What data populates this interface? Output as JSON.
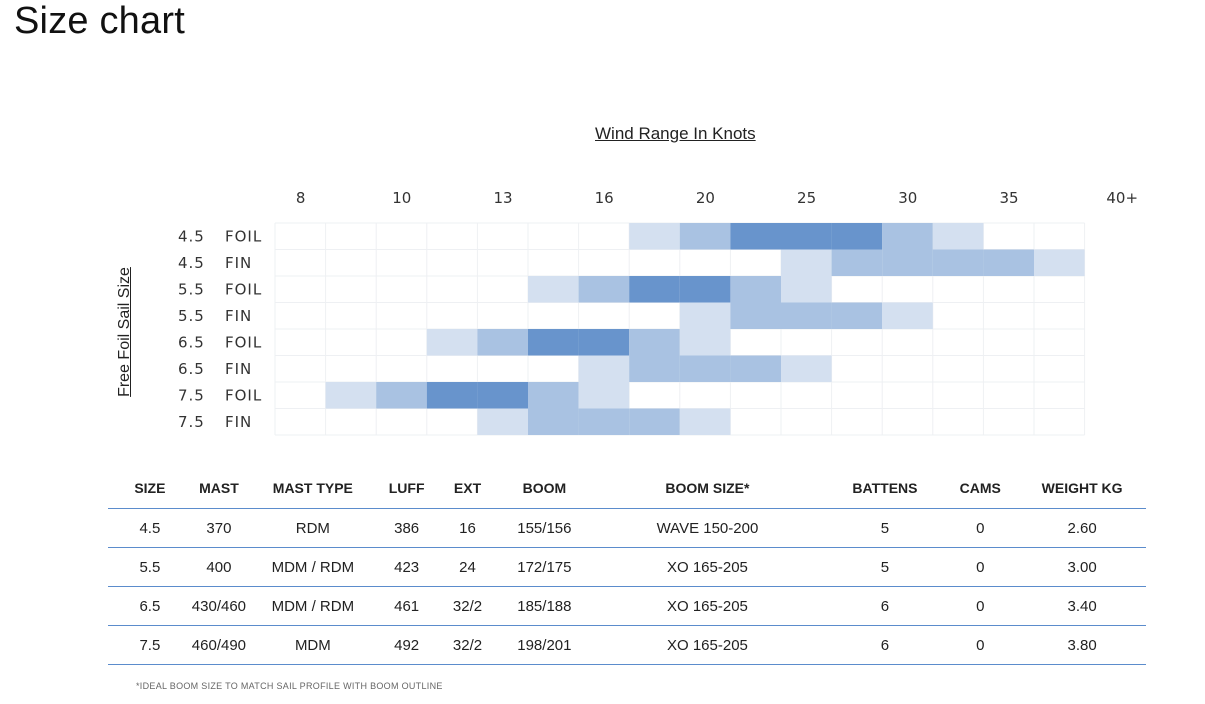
{
  "page": {
    "title": "Size chart"
  },
  "chart_data": {
    "type": "heatmap",
    "title": "Wind Range In Knots",
    "ylabel": "Free Foil Sail Size",
    "x_ticks": [
      "8",
      "10",
      "13",
      "16",
      "20",
      "25",
      "30",
      "35",
      "40+"
    ],
    "rows": [
      {
        "size": "4.5",
        "type": "FOIL",
        "cells": [
          0,
          0,
          0,
          0,
          0,
          0,
          0,
          1,
          2,
          3,
          3,
          3,
          2,
          1,
          0,
          0
        ]
      },
      {
        "size": "4.5",
        "type": "FIN",
        "cells": [
          0,
          0,
          0,
          0,
          0,
          0,
          0,
          0,
          0,
          0,
          1,
          2,
          2,
          2,
          2,
          1
        ]
      },
      {
        "size": "5.5",
        "type": "FOIL",
        "cells": [
          0,
          0,
          0,
          0,
          0,
          1,
          2,
          3,
          3,
          2,
          1,
          0,
          0,
          0,
          0,
          0
        ]
      },
      {
        "size": "5.5",
        "type": "FIN",
        "cells": [
          0,
          0,
          0,
          0,
          0,
          0,
          0,
          0,
          1,
          2,
          2,
          2,
          1,
          0,
          0,
          0
        ]
      },
      {
        "size": "6.5",
        "type": "FOIL",
        "cells": [
          0,
          0,
          0,
          1,
          2,
          3,
          3,
          2,
          1,
          0,
          0,
          0,
          0,
          0,
          0,
          0
        ]
      },
      {
        "size": "6.5",
        "type": "FIN",
        "cells": [
          0,
          0,
          0,
          0,
          0,
          0,
          1,
          2,
          2,
          2,
          1,
          0,
          0,
          0,
          0,
          0
        ]
      },
      {
        "size": "7.5",
        "type": "FOIL",
        "cells": [
          0,
          1,
          2,
          3,
          3,
          2,
          1,
          0,
          0,
          0,
          0,
          0,
          0,
          0,
          0,
          0
        ]
      },
      {
        "size": "7.5",
        "type": "FIN",
        "cells": [
          0,
          0,
          0,
          0,
          1,
          2,
          2,
          2,
          1,
          0,
          0,
          0,
          0,
          0,
          0,
          0
        ]
      }
    ],
    "colors": [
      "#ffffff",
      "#d4e0f0",
      "#a9c2e2",
      "#6894cc"
    ]
  },
  "table": {
    "headers": [
      "SIZE",
      "MAST",
      "MAST TYPE",
      "LUFF",
      "EXT",
      "BOOM",
      "BOOM SIZE*",
      "BATTENS",
      "CAMS",
      "WEIGHT KG"
    ],
    "rows": [
      [
        "4.5",
        "370",
        "RDM",
        "386",
        "16",
        "155/156",
        "WAVE 150-200",
        "5",
        "0",
        "2.60"
      ],
      [
        "5.5",
        "400",
        "MDM / RDM",
        "423",
        "24",
        "172/175",
        "XO 165-205",
        "5",
        "0",
        "3.00"
      ],
      [
        "6.5",
        "430/460",
        "MDM / RDM",
        "461",
        "32/2",
        "185/188",
        "XO 165-205",
        "6",
        "0",
        "3.40"
      ],
      [
        "7.5",
        "460/490",
        "MDM",
        "492",
        "32/2",
        "198/201",
        "XO 165-205",
        "6",
        "0",
        "3.80"
      ]
    ]
  },
  "footnote": "*IDEAL BOOM SIZE TO MATCH SAIL PROFILE WITH BOOM OUTLINE"
}
